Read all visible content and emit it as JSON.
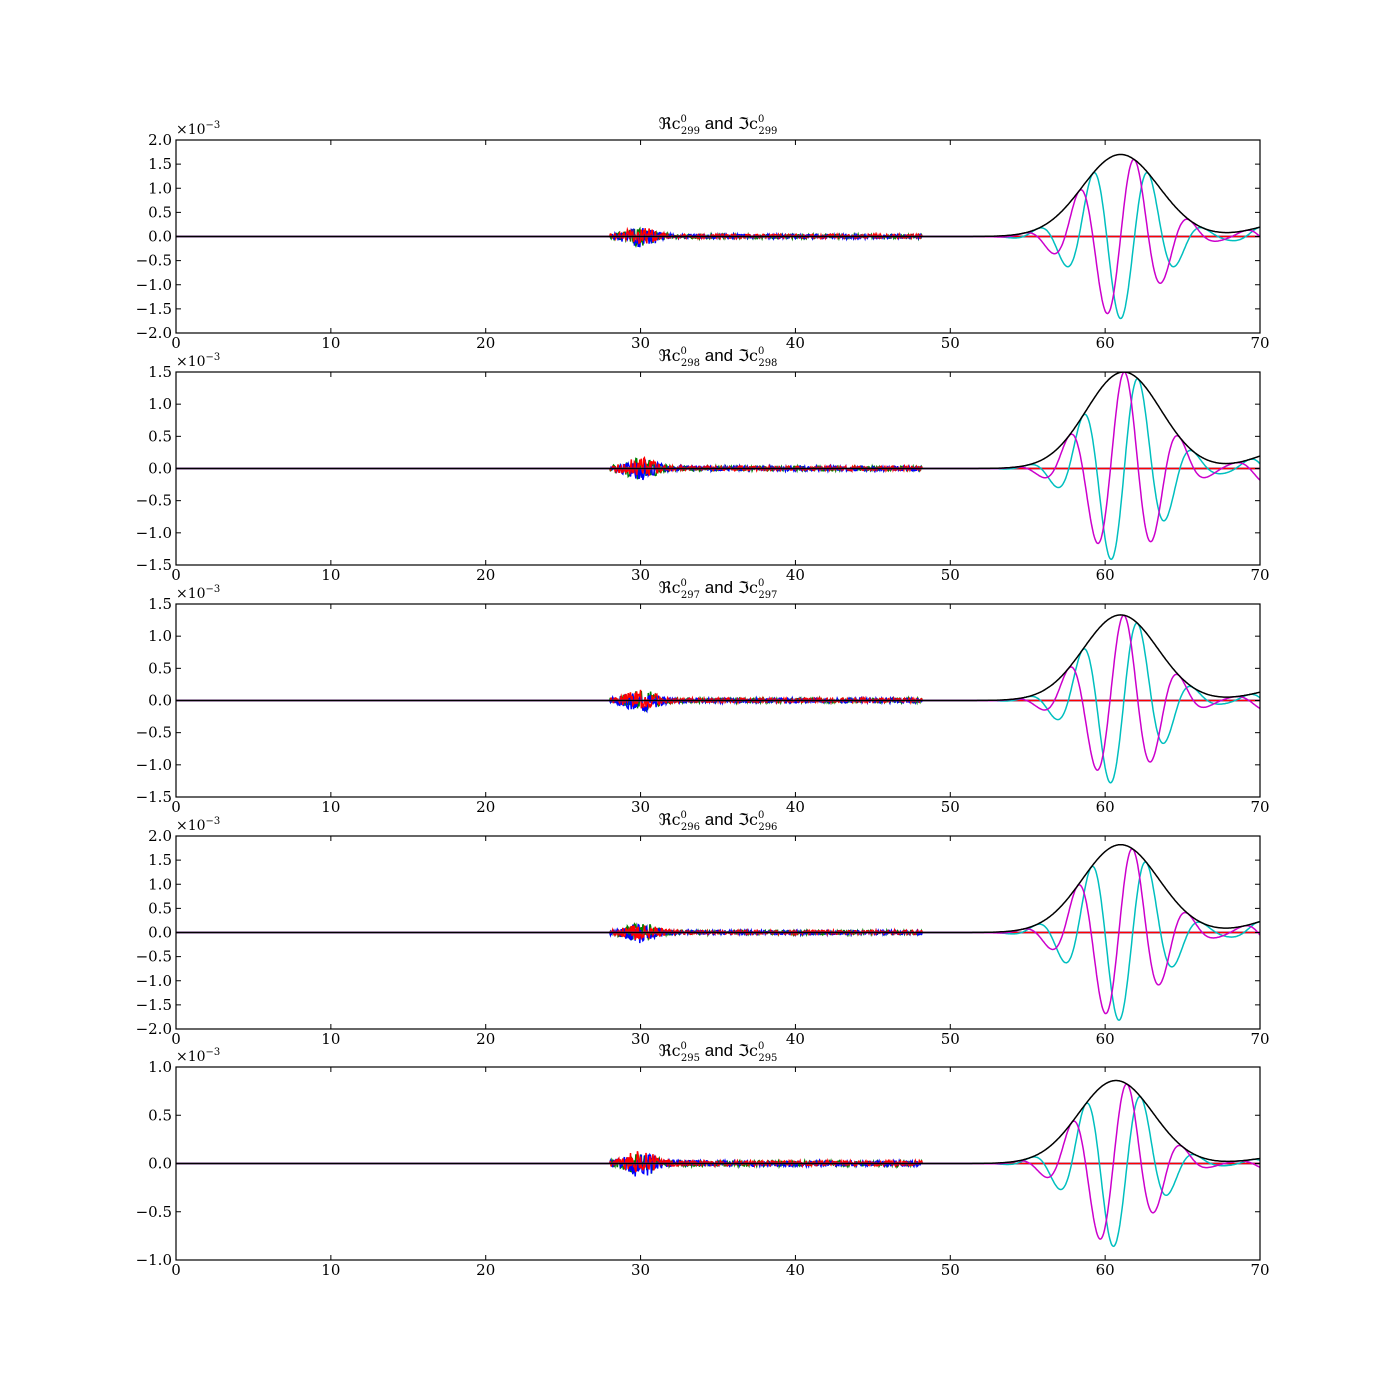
{
  "chart_data": [
    {
      "type": "line",
      "title": {
        "re": "ℜc",
        "im": "ℑc",
        "sup": "0",
        "sub": "299",
        "joiner": "and"
      },
      "y_exponent": "×10",
      "y_exponent_power": "−3",
      "scale": 0.001,
      "xlim": [
        0,
        70
      ],
      "ylim": [
        -2.0,
        2.0
      ],
      "x_ticks": [
        "0",
        "10",
        "20",
        "30",
        "40",
        "50",
        "60",
        "70"
      ],
      "y_ticks": [
        "2.0",
        "1.5",
        "1.0",
        "0.5",
        "0.0",
        "−0.5",
        "−1.0",
        "−1.5",
        "−2.0"
      ],
      "y_tick_values": [
        2.0,
        1.5,
        1.0,
        0.5,
        0.0,
        -0.5,
        -1.0,
        -1.5,
        -2.0
      ],
      "packet": {
        "amplitude": 1.7,
        "center": 61.0,
        "width": 3.5,
        "tail": 0.3,
        "phase": 0.0
      },
      "noise": {
        "amplitude": 0.18,
        "seed": 1
      }
    },
    {
      "type": "line",
      "title": {
        "re": "ℜc",
        "im": "ℑc",
        "sup": "0",
        "sub": "298",
        "joiner": "and"
      },
      "y_exponent": "×10",
      "y_exponent_power": "−3",
      "scale": 0.001,
      "xlim": [
        0,
        70
      ],
      "ylim": [
        -1.5,
        1.5
      ],
      "x_ticks": [
        "0",
        "10",
        "20",
        "30",
        "40",
        "50",
        "60",
        "70"
      ],
      "y_ticks": [
        "1.5",
        "1.0",
        "0.5",
        "0.0",
        "−0.5",
        "−1.0",
        "−1.5"
      ],
      "y_tick_values": [
        1.5,
        1.0,
        0.5,
        0.0,
        -0.5,
        -1.0,
        -1.5
      ],
      "packet": {
        "amplitude": 1.5,
        "center": 61.2,
        "width": 3.4,
        "tail": 0.3,
        "phase": 1.5
      },
      "noise": {
        "amplitude": 0.15,
        "seed": 2
      }
    },
    {
      "type": "line",
      "title": {
        "re": "ℜc",
        "im": "ℑc",
        "sup": "0",
        "sub": "297",
        "joiner": "and"
      },
      "y_exponent": "×10",
      "y_exponent_power": "−3",
      "scale": 0.001,
      "xlim": [
        0,
        70
      ],
      "ylim": [
        -1.5,
        1.5
      ],
      "x_ticks": [
        "0",
        "10",
        "20",
        "30",
        "40",
        "50",
        "60",
        "70"
      ],
      "y_ticks": [
        "1.5",
        "1.0",
        "0.5",
        "0.0",
        "−0.5",
        "−1.0",
        "−1.5"
      ],
      "y_tick_values": [
        1.5,
        1.0,
        0.5,
        0.0,
        -0.5,
        -1.0,
        -1.5
      ],
      "packet": {
        "amplitude": 1.33,
        "center": 61.0,
        "width": 3.4,
        "tail": 0.2,
        "phase": 1.2
      },
      "noise": {
        "amplitude": 0.15,
        "seed": 3
      }
    },
    {
      "type": "line",
      "title": {
        "re": "ℜc",
        "im": "ℑc",
        "sup": "0",
        "sub": "296",
        "joiner": "and"
      },
      "y_exponent": "×10",
      "y_exponent_power": "−3",
      "scale": 0.001,
      "xlim": [
        0,
        70
      ],
      "ylim": [
        -2.0,
        2.0
      ],
      "x_ticks": [
        "0",
        "10",
        "20",
        "30",
        "40",
        "50",
        "60",
        "70"
      ],
      "y_ticks": [
        "2.0",
        "1.5",
        "1.0",
        "0.5",
        "0.0",
        "−0.5",
        "−1.0",
        "−1.5",
        "−2.0"
      ],
      "y_tick_values": [
        2.0,
        1.5,
        1.0,
        0.5,
        0.0,
        -0.5,
        -1.0,
        -1.5,
        -2.0
      ],
      "packet": {
        "amplitude": 1.82,
        "center": 61.0,
        "width": 3.5,
        "tail": 0.35,
        "phase": 0.2
      },
      "noise": {
        "amplitude": 0.18,
        "seed": 4
      }
    },
    {
      "type": "line",
      "title": {
        "re": "ℜc",
        "im": "ℑc",
        "sup": "0",
        "sub": "295",
        "joiner": "and"
      },
      "y_exponent": "×10",
      "y_exponent_power": "−3",
      "scale": 0.001,
      "xlim": [
        0,
        70
      ],
      "ylim": [
        -1.0,
        1.0
      ],
      "x_ticks": [
        "0",
        "10",
        "20",
        "30",
        "40",
        "50",
        "60",
        "70"
      ],
      "y_ticks": [
        "1.0",
        "0.5",
        "0.0",
        "−0.5",
        "−1.0"
      ],
      "y_tick_values": [
        1.0,
        0.5,
        0.0,
        -0.5,
        -1.0
      ],
      "packet": {
        "amplitude": 0.86,
        "center": 60.7,
        "width": 3.4,
        "tail": 0.08,
        "phase": 0.3
      },
      "noise": {
        "amplitude": 0.12,
        "seed": 5
      }
    }
  ],
  "series_colors": {
    "envelope": "#000000",
    "real": "#cc00cc",
    "imag": "#00bfbf",
    "blue": "#0000ff",
    "green": "#008000",
    "red": "#ff0000"
  },
  "wave": {
    "omega": 1.75,
    "noise_start": 28.0,
    "noise_end": 48.2,
    "burst_center": 30.0
  }
}
